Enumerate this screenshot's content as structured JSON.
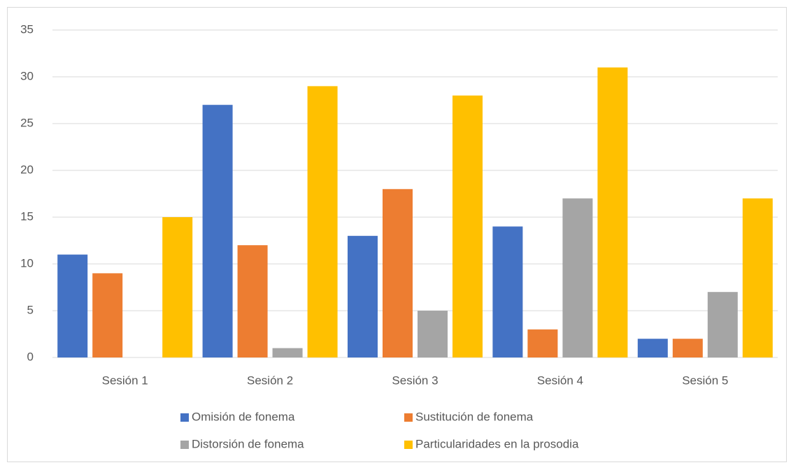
{
  "chart_data": {
    "type": "bar",
    "categories": [
      "Sesión 1",
      "Sesión 2",
      "Sesión 3",
      "Sesión 4",
      "Sesión 5"
    ],
    "series": [
      {
        "name": "Omisión de fonema",
        "color": "#4472c4",
        "values": [
          11,
          27,
          13,
          14,
          2
        ]
      },
      {
        "name": "Sustitución de fonema",
        "color": "#ed7d31",
        "values": [
          9,
          12,
          18,
          3,
          2
        ]
      },
      {
        "name": "Distorsión de fonema",
        "color": "#a5a5a5",
        "values": [
          0,
          1,
          5,
          17,
          7
        ]
      },
      {
        "name": "Particularidades en la prosodia",
        "color": "#ffc000",
        "values": [
          15,
          29,
          28,
          31,
          17
        ]
      }
    ],
    "ylim": [
      0,
      35
    ],
    "yticks": [
      0,
      5,
      10,
      15,
      20,
      25,
      30,
      35
    ],
    "grid": true,
    "legend": "bottom"
  }
}
